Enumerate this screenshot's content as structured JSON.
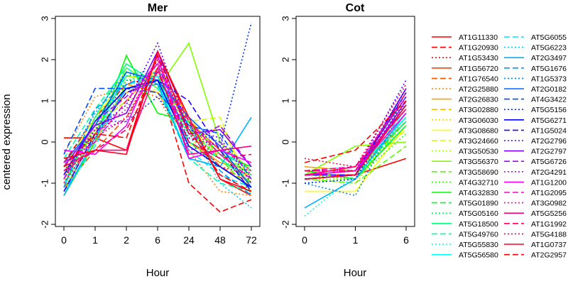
{
  "chart_data": [
    {
      "type": "line",
      "title": "Mer",
      "xlabel": "Hour",
      "ylabel": "centered expression",
      "categories": [
        "0",
        "1",
        "2",
        "6",
        "24",
        "48",
        "72"
      ],
      "ylim": [
        -2,
        3
      ],
      "yticks": [
        "-2",
        "-1",
        "0",
        "1",
        "2",
        "3"
      ],
      "grid": false,
      "series": [
        {
          "name": "AT1G11330",
          "values": [
            0.1,
            0.1,
            -0.2,
            2.2,
            0.5,
            -0.9,
            -1.3
          ]
        },
        {
          "name": "AT1G20930",
          "values": [
            -0.5,
            0.6,
            1.4,
            1.6,
            -1.0,
            -1.7,
            -1.4
          ]
        },
        {
          "name": "AT1G53430",
          "values": [
            -0.8,
            0.3,
            1.5,
            1.4,
            0.2,
            -0.4,
            -1.0
          ]
        },
        {
          "name": "AT1G56720",
          "values": [
            -1.2,
            0.2,
            1.2,
            1.5,
            0.5,
            -0.2,
            -1.1
          ]
        },
        {
          "name": "AT1G76540",
          "values": [
            -1.1,
            -0.2,
            0.6,
            1.8,
            0.3,
            -0.6,
            -1.0
          ]
        },
        {
          "name": "AT2G25880",
          "values": [
            -0.3,
            1.1,
            1.3,
            1.1,
            -0.2,
            -1.2,
            -1.3
          ]
        },
        {
          "name": "AT2G26830",
          "values": [
            -0.8,
            0.0,
            1.4,
            1.2,
            0.0,
            -0.5,
            -0.7
          ]
        },
        {
          "name": "AT3G02880",
          "values": [
            -0.9,
            0.4,
            1.0,
            1.8,
            0.6,
            -0.4,
            -1.2
          ]
        },
        {
          "name": "AT3G06030",
          "values": [
            -1.0,
            0.3,
            1.2,
            1.6,
            0.3,
            -0.3,
            -1.0
          ]
        },
        {
          "name": "AT3G08680",
          "values": [
            -0.6,
            0.6,
            1.6,
            1.5,
            -0.1,
            0.4,
            -1.0
          ]
        },
        {
          "name": "AT3G24660",
          "values": [
            -0.8,
            0.3,
            1.6,
            1.5,
            0.5,
            0.6,
            -1.3
          ]
        },
        {
          "name": "AT3G50530",
          "values": [
            -0.9,
            0.4,
            1.0,
            1.3,
            0.2,
            0.0,
            -1.0
          ]
        },
        {
          "name": "AT3G56370",
          "values": [
            -0.7,
            0.2,
            1.8,
            1.3,
            2.4,
            0.0,
            -0.7
          ]
        },
        {
          "name": "AT3G58690",
          "values": [
            -1.0,
            0.5,
            1.3,
            1.5,
            0.3,
            -0.4,
            -1.2
          ]
        },
        {
          "name": "AT4G32710",
          "values": [
            -1.2,
            0.4,
            1.5,
            1.6,
            0.4,
            -0.3,
            -0.8
          ]
        },
        {
          "name": "AT4G32830",
          "values": [
            -1.3,
            0.0,
            2.1,
            0.7,
            0.5,
            -0.3,
            -0.6
          ]
        },
        {
          "name": "AT5G01890",
          "values": [
            -0.9,
            0.5,
            1.6,
            1.6,
            0.0,
            -0.6,
            -1.1
          ]
        },
        {
          "name": "AT5G05160",
          "values": [
            -0.8,
            0.2,
            1.4,
            1.5,
            0.2,
            -0.3,
            -0.8
          ]
        },
        {
          "name": "AT5G18500",
          "values": [
            -1.1,
            0.6,
            1.9,
            1.4,
            0.0,
            -0.4,
            -1.0
          ]
        },
        {
          "name": "AT5G49760",
          "values": [
            -0.4,
            0.8,
            1.8,
            1.3,
            -0.4,
            -1.0,
            -1.2
          ]
        },
        {
          "name": "AT5G55830",
          "values": [
            -1.3,
            0.5,
            1.5,
            1.7,
            0.1,
            -0.4,
            -0.9
          ]
        },
        {
          "name": "AT5G56580",
          "values": [
            -1.0,
            0.1,
            1.7,
            1.5,
            -0.4,
            -0.2,
            -0.7
          ]
        },
        {
          "name": "AT5G6055",
          "values": [
            -1.2,
            -0.1,
            1.4,
            1.6,
            -0.2,
            -0.8,
            -1.1
          ]
        },
        {
          "name": "AT5G6223",
          "values": [
            -1.3,
            0.3,
            1.6,
            1.8,
            0.4,
            -1.0,
            -1.6
          ]
        },
        {
          "name": "AT2G3497",
          "values": [
            -1.3,
            0.1,
            1.3,
            1.4,
            -0.4,
            -0.6,
            0.6
          ]
        },
        {
          "name": "AT5G1676",
          "values": [
            -1.1,
            0.8,
            1.4,
            1.7,
            0.4,
            -0.7,
            -1.3
          ]
        },
        {
          "name": "AT1G5373",
          "values": [
            -0.6,
            0.7,
            1.7,
            1.4,
            0.3,
            0.0,
            -1.3
          ]
        },
        {
          "name": "AT2G0182",
          "values": [
            -0.5,
            0.4,
            1.7,
            1.5,
            0.6,
            -0.1,
            -1.1
          ]
        },
        {
          "name": "AT4G3422",
          "values": [
            -0.3,
            1.3,
            1.3,
            1.2,
            0.4,
            0.2,
            -0.9
          ]
        },
        {
          "name": "AT5G5156",
          "values": [
            -0.9,
            0.5,
            0.5,
            1.1,
            0.1,
            -0.1,
            2.9
          ]
        },
        {
          "name": "AT5G6271",
          "values": [
            -0.8,
            0.5,
            1.3,
            1.5,
            -0.1,
            -0.6,
            -1.1
          ]
        },
        {
          "name": "AT1G5024",
          "values": [
            -1.2,
            0.2,
            1.2,
            1.5,
            1.0,
            -0.2,
            -1.2
          ]
        },
        {
          "name": "AT2G2796",
          "values": [
            -0.8,
            0.3,
            0.9,
            2.4,
            0.3,
            0.1,
            -1.0
          ]
        },
        {
          "name": "AT2G2797",
          "values": [
            -0.6,
            0.4,
            0.7,
            2.2,
            0.2,
            0.3,
            -0.6
          ]
        },
        {
          "name": "AT5G6726",
          "values": [
            -0.9,
            0.5,
            1.1,
            1.9,
            0.0,
            0.4,
            -0.6
          ]
        },
        {
          "name": "AT2G4291",
          "values": [
            -0.7,
            0.3,
            0.5,
            2.1,
            -0.2,
            0.0,
            -0.8
          ]
        },
        {
          "name": "AT1G1200",
          "values": [
            -0.2,
            -0.3,
            0.4,
            2.1,
            -0.4,
            -0.2,
            -0.5
          ]
        },
        {
          "name": "AT1G2095",
          "values": [
            -0.5,
            0.0,
            1.0,
            1.9,
            0.5,
            -0.3,
            -0.9
          ]
        },
        {
          "name": "AT3G0982",
          "values": [
            -0.9,
            0.2,
            0.8,
            2.0,
            0.2,
            -0.1,
            -0.7
          ]
        },
        {
          "name": "AT5G5256",
          "values": [
            -0.6,
            -0.2,
            -0.2,
            1.8,
            -0.3,
            -0.2,
            -0.1
          ]
        },
        {
          "name": "AT1G1992",
          "values": [
            -0.7,
            -0.2,
            0.3,
            1.7,
            0.0,
            -0.4,
            -0.3
          ]
        },
        {
          "name": "AT5G4188",
          "values": [
            -1.0,
            0.1,
            0.6,
            2.0,
            0.2,
            -0.6,
            -0.8
          ]
        },
        {
          "name": "AT1G0737",
          "values": [
            -0.4,
            -0.2,
            -0.3,
            2.2,
            0.6,
            -0.9,
            -1.2
          ]
        },
        {
          "name": "AT2G2957",
          "values": [
            -0.6,
            0.2,
            0.1,
            2.1,
            0.3,
            -0.8,
            -1.2
          ]
        }
      ]
    },
    {
      "type": "line",
      "title": "Cot",
      "xlabel": "Hour",
      "ylabel": "",
      "categories": [
        "0",
        "1",
        "6"
      ],
      "ylim": [
        -2,
        3
      ],
      "yticks": [
        "-2",
        "-1",
        "0",
        "1",
        "2",
        "3"
      ],
      "grid": false,
      "series": [
        {
          "name": "AT1G11330",
          "values": [
            -0.8,
            -0.8,
            -0.4
          ]
        },
        {
          "name": "AT1G20930",
          "values": [
            -0.7,
            -0.7,
            0.9
          ]
        },
        {
          "name": "AT1G53430",
          "values": [
            -0.9,
            -0.8,
            0.6
          ]
        },
        {
          "name": "AT1G56720",
          "values": [
            -0.8,
            -0.7,
            0.5
          ]
        },
        {
          "name": "AT1G76540",
          "values": [
            -0.7,
            -0.6,
            0.8
          ]
        },
        {
          "name": "AT2G25880",
          "values": [
            -0.7,
            -0.9,
            0.4
          ]
        },
        {
          "name": "AT2G26830",
          "values": [
            -0.6,
            -0.7,
            0.6
          ]
        },
        {
          "name": "AT3G02880",
          "values": [
            -0.8,
            -0.8,
            0.7
          ]
        },
        {
          "name": "AT3G06030",
          "values": [
            -0.9,
            -1.0,
            0.5
          ]
        },
        {
          "name": "AT3G08680",
          "values": [
            -1.2,
            -1.2,
            0.4
          ]
        },
        {
          "name": "AT3G24660",
          "values": [
            -0.8,
            -0.8,
            0.3
          ]
        },
        {
          "name": "AT3G50530",
          "values": [
            -0.9,
            -0.9,
            0.5
          ]
        },
        {
          "name": "AT3G56370",
          "values": [
            -0.8,
            -0.1,
            0.0
          ]
        },
        {
          "name": "AT3G58690",
          "values": [
            -0.9,
            -1.0,
            -0.1
          ]
        },
        {
          "name": "AT4G32710",
          "values": [
            -0.8,
            -0.9,
            0.2
          ]
        },
        {
          "name": "AT4G32830",
          "values": [
            -0.7,
            -0.9,
            0.4
          ]
        },
        {
          "name": "AT5G01890",
          "values": [
            -0.8,
            -0.8,
            0.5
          ]
        },
        {
          "name": "AT5G05160",
          "values": [
            -1.0,
            -0.9,
            0.6
          ]
        },
        {
          "name": "AT5G18500",
          "values": [
            -0.8,
            -0.7,
            0.7
          ]
        },
        {
          "name": "AT5G49760",
          "values": [
            -0.7,
            -0.7,
            0.5
          ]
        },
        {
          "name": "AT5G55830",
          "values": [
            -1.8,
            -0.8,
            0.4
          ]
        },
        {
          "name": "AT5G56580",
          "values": [
            -0.8,
            -0.7,
            0.6
          ]
        },
        {
          "name": "AT5G6055",
          "values": [
            -0.9,
            -0.8,
            0.8
          ]
        },
        {
          "name": "AT5G6223",
          "values": [
            -0.7,
            -0.6,
            0.9
          ]
        },
        {
          "name": "AT2G3497",
          "values": [
            -1.6,
            -0.9,
            0.7
          ]
        },
        {
          "name": "AT5G1676",
          "values": [
            -0.8,
            -0.8,
            0.9
          ]
        },
        {
          "name": "AT1G5373",
          "values": [
            -1.0,
            -1.3,
            1.0
          ]
        },
        {
          "name": "AT2G0182",
          "values": [
            -0.8,
            -0.7,
            1.1
          ]
        },
        {
          "name": "AT4G3422",
          "values": [
            -0.9,
            -0.8,
            1.0
          ]
        },
        {
          "name": "AT5G5156",
          "values": [
            -1.0,
            -0.9,
            1.1
          ]
        },
        {
          "name": "AT5G6271",
          "values": [
            -0.9,
            -0.8,
            1.3
          ]
        },
        {
          "name": "AT1G5024",
          "values": [
            -0.8,
            -0.8,
            1.2
          ]
        },
        {
          "name": "AT2G2796",
          "values": [
            -0.7,
            -0.7,
            1.5
          ]
        },
        {
          "name": "AT2G2797",
          "values": [
            -0.9,
            -0.8,
            1.0
          ]
        },
        {
          "name": "AT5G6726",
          "values": [
            -0.8,
            -0.7,
            0.9
          ]
        },
        {
          "name": "AT2G4291",
          "values": [
            -0.7,
            -0.7,
            1.3
          ]
        },
        {
          "name": "AT1G1200",
          "values": [
            -0.8,
            -0.7,
            0.7
          ]
        },
        {
          "name": "AT1G2095",
          "values": [
            -0.7,
            -0.6,
            1.1
          ]
        },
        {
          "name": "AT3G0982",
          "values": [
            -0.8,
            -0.7,
            1.0
          ]
        },
        {
          "name": "AT5G5256",
          "values": [
            -0.8,
            -0.6,
            0.8
          ]
        },
        {
          "name": "AT1G1992",
          "values": [
            -0.7,
            -0.7,
            1.2
          ]
        },
        {
          "name": "AT5G4188",
          "values": [
            -0.4,
            -0.6,
            1.4
          ]
        },
        {
          "name": "AT1G0737",
          "values": [
            -0.9,
            -0.8,
            0.9
          ]
        },
        {
          "name": "AT2G2957",
          "values": [
            -0.5,
            -0.2,
            1.0
          ]
        }
      ]
    }
  ],
  "legend": {
    "placement": "right",
    "colors": [
      "#ff0000",
      "#ff0000",
      "#ff0000",
      "#ff4000",
      "#ff5500",
      "#ff8000",
      "#ffa500",
      "#ffbf00",
      "#ffd400",
      "#ffff00",
      "#d4ff00",
      "#aaff00",
      "#80ff00",
      "#55ff00",
      "#2aff00",
      "#00ff00",
      "#00ff2a",
      "#00ff55",
      "#00ff80",
      "#00ffaa",
      "#00ffd4",
      "#00ffff",
      "#00e6ff",
      "#00ccff",
      "#00b3ff",
      "#0099ff",
      "#0080ff",
      "#0066ff",
      "#004dff",
      "#0033ff",
      "#0000ff",
      "#2a00ff",
      "#5500ff",
      "#8000ff",
      "#aa00ff",
      "#d400ff",
      "#ff00ff",
      "#ff00cc",
      "#ff0099",
      "#ff0080",
      "#ff0066",
      "#ff0040",
      "#ff0020",
      "#ff0000"
    ],
    "dashes": [
      "solid",
      "dashed",
      "dotted"
    ]
  }
}
